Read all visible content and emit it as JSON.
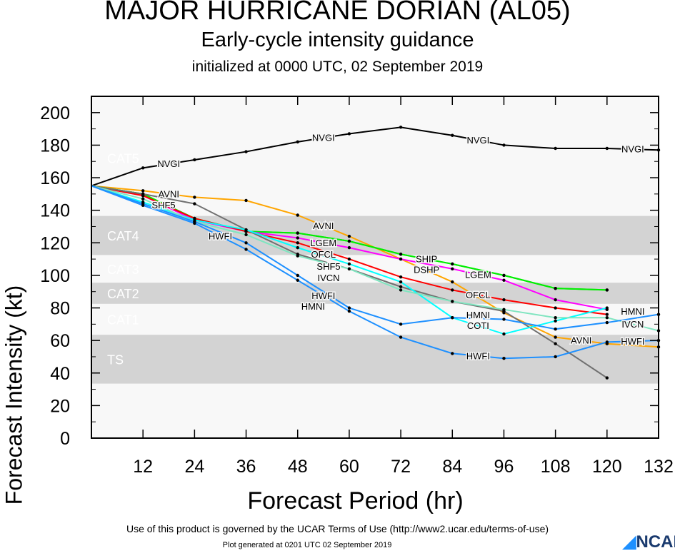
{
  "chart_data": {
    "type": "line",
    "title": "MAJOR HURRICANE DORIAN (AL05)",
    "subtitle": "Early-cycle intensity guidance",
    "subtitle2": "initialized at 0000 UTC, 02 September 2019",
    "xlabel": "Forecast Period (hr)",
    "ylabel": "Forecast Intensity (kt)",
    "xlim": [
      0,
      132
    ],
    "ylim": [
      0,
      210
    ],
    "xticks": [
      12,
      24,
      36,
      48,
      60,
      72,
      84,
      96,
      108,
      120,
      132
    ],
    "yticks": [
      0,
      20,
      40,
      60,
      80,
      100,
      120,
      140,
      160,
      180,
      200
    ],
    "x": [
      0,
      12,
      24,
      36,
      48,
      60,
      72,
      84,
      96,
      108,
      120,
      132
    ],
    "bands": [
      {
        "name": "CAT5",
        "lo": 137,
        "hi": 210,
        "shade": false
      },
      {
        "name": "CAT4",
        "lo": 113,
        "hi": 136,
        "shade": true
      },
      {
        "name": "CAT3",
        "lo": 96,
        "hi": 112,
        "shade": false
      },
      {
        "name": "CAT2",
        "lo": 83,
        "hi": 95,
        "shade": true
      },
      {
        "name": "CAT1",
        "lo": 64,
        "hi": 82,
        "shade": false
      },
      {
        "name": "TS",
        "lo": 34,
        "hi": 63,
        "shade": true
      }
    ],
    "series": [
      {
        "name": "NVGI",
        "color": "#000000",
        "values": [
          155,
          166,
          171,
          176,
          182,
          187,
          191,
          186,
          180,
          178,
          178,
          177
        ],
        "labels": [
          2,
          5,
          8,
          11
        ]
      },
      {
        "name": "AVNI",
        "color": "#ffa500",
        "values": [
          155,
          152,
          148,
          146,
          137,
          124,
          110,
          96,
          77,
          62,
          58,
          56
        ],
        "labels": [
          2,
          5,
          10
        ]
      },
      {
        "name": "SHIP",
        "color": "#00ee00",
        "values": [
          155,
          150,
          135,
          127,
          126,
          121,
          113,
          107,
          100,
          92,
          91,
          null
        ],
        "labels": [
          7
        ]
      },
      {
        "name": "DSHP",
        "color": "#00ee00",
        "values": [
          155,
          150,
          135,
          127,
          126,
          121,
          113,
          107,
          100,
          92,
          91,
          null
        ],
        "labels": [
          7
        ]
      },
      {
        "name": "LGEM",
        "color": "#ff00ff",
        "values": [
          155,
          149,
          134,
          127,
          123,
          117,
          110,
          104,
          97,
          85,
          79,
          null
        ],
        "labels": [
          5,
          8
        ]
      },
      {
        "name": "OFCL",
        "color": "#ff0000",
        "values": [
          155,
          149,
          135,
          127,
          120,
          110,
          99,
          91,
          85,
          80,
          76,
          null
        ],
        "labels": [
          5,
          8
        ]
      },
      {
        "name": "SHF5",
        "color": "#707070",
        "values": [
          155,
          150,
          144,
          128,
          113,
          104,
          93,
          84,
          78,
          58,
          37,
          null
        ],
        "labels": [
          2,
          5
        ]
      },
      {
        "name": "COTI",
        "color": "#00ffff",
        "values": [
          155,
          145,
          134,
          128,
          117,
          107,
          96,
          74,
          64,
          72,
          80,
          null
        ],
        "labels": [
          8
        ]
      },
      {
        "name": "IVCN",
        "color": "#7fe5c0",
        "values": [
          155,
          147,
          133,
          125,
          112,
          104,
          91,
          84,
          79,
          74,
          74,
          66
        ],
        "labels": [
          5,
          11
        ]
      },
      {
        "name": "HWFI",
        "color": "#1e90ff",
        "values": [
          155,
          143,
          132,
          116,
          97,
          78,
          62,
          52,
          49,
          50,
          59,
          60
        ],
        "labels": [
          3,
          5,
          8,
          11
        ]
      },
      {
        "name": "HMNI",
        "color": "#1e90ff",
        "values": [
          155,
          144,
          133,
          120,
          100,
          80,
          70,
          74,
          73,
          67,
          71,
          76
        ],
        "labels": [
          5,
          8,
          11
        ]
      }
    ]
  },
  "footer": {
    "terms": "Use of this product is governed by the UCAR Terms of Use (http://www2.ucar.edu/terms-of-use)",
    "generated": "Plot generated at 0201 UTC   02 September 2019",
    "logo": "NCAR"
  }
}
